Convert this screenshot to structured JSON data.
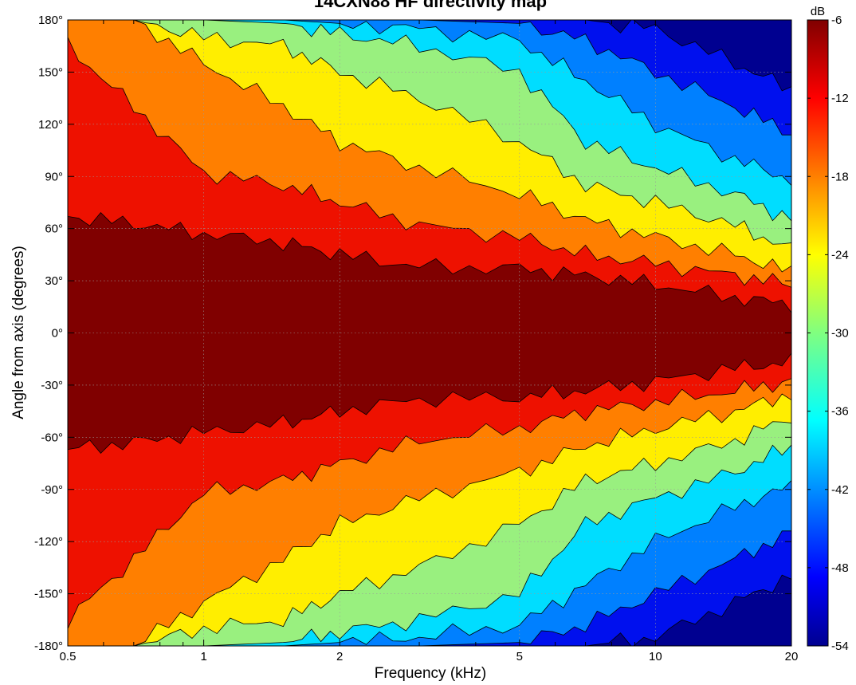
{
  "chart_data": {
    "type": "heatmap",
    "title": "14CXN88 HF directivity map",
    "xlabel": "Frequency (kHz)",
    "ylabel": "Angle from axis (degrees)",
    "x_scale": "log",
    "xlim": [
      0.5,
      20
    ],
    "ylim": [
      -180,
      180
    ],
    "x_ticks": [
      0.5,
      1,
      2,
      5,
      10,
      20
    ],
    "x_tick_labels": [
      "0.5",
      "1",
      "2",
      "5",
      "10",
      "20"
    ],
    "y_ticks": [
      180,
      150,
      120,
      90,
      60,
      30,
      0,
      -30,
      -60,
      -90,
      -120,
      -150,
      -180
    ],
    "y_tick_labels": [
      "180°",
      "150°",
      "120°",
      "90°",
      "60°",
      "30°",
      "0°",
      "-30°",
      "-60°",
      "-90°",
      "-120°",
      "-150°",
      "-180°"
    ],
    "grid": true,
    "colorbar": {
      "label": "dB",
      "range": [
        -54,
        -6
      ],
      "ticks": [
        -6,
        -12,
        -18,
        -24,
        -30,
        -36,
        -42,
        -48,
        -54
      ],
      "tick_labels": [
        "-6",
        "-12",
        "-18",
        "-24",
        "-30",
        "-36",
        "-42",
        "-48",
        "-54"
      ],
      "colormap": "jet",
      "position": "right"
    },
    "contour_step_db": 6,
    "symmetric_about_zero": true,
    "band_colors": {
      "-6": "#800000",
      "-12": "#ee1100",
      "-18": "#ff7f00",
      "-24": "#ffee00",
      "-30": "#99f07f",
      "-36": "#00ddff",
      "-42": "#0080ff",
      "-48": "#0010ee",
      "-54": "#000090"
    },
    "boundaries": {
      "frequencies_khz": [
        0.5,
        0.7,
        1,
        1.5,
        2,
        3,
        5,
        7,
        10,
        15,
        20
      ],
      "angle_-6dB": [
        67,
        63,
        57,
        52,
        45,
        38,
        37,
        33,
        28,
        20,
        17
      ],
      "angle_-12dB": [
        165,
        130,
        92,
        85,
        75,
        62,
        55,
        45,
        40,
        33,
        28
      ],
      "angle_-18dB": [
        180,
        180,
        155,
        130,
        110,
        95,
        80,
        65,
        55,
        45,
        35
      ],
      "angle_-24dB": [
        180,
        180,
        170,
        165,
        150,
        135,
        110,
        85,
        75,
        62,
        48
      ],
      "angle_-30dB": [
        180,
        180,
        180,
        178,
        172,
        165,
        150,
        110,
        95,
        80,
        65
      ],
      "angle_-36dB": [
        180,
        180,
        180,
        180,
        178,
        175,
        168,
        145,
        120,
        100,
        88
      ],
      "angle_-42dB": [
        180,
        180,
        180,
        180,
        180,
        180,
        178,
        168,
        150,
        130,
        115
      ],
      "angle_-48dB": [
        180,
        180,
        180,
        180,
        180,
        180,
        180,
        180,
        175,
        155,
        140
      ]
    }
  }
}
